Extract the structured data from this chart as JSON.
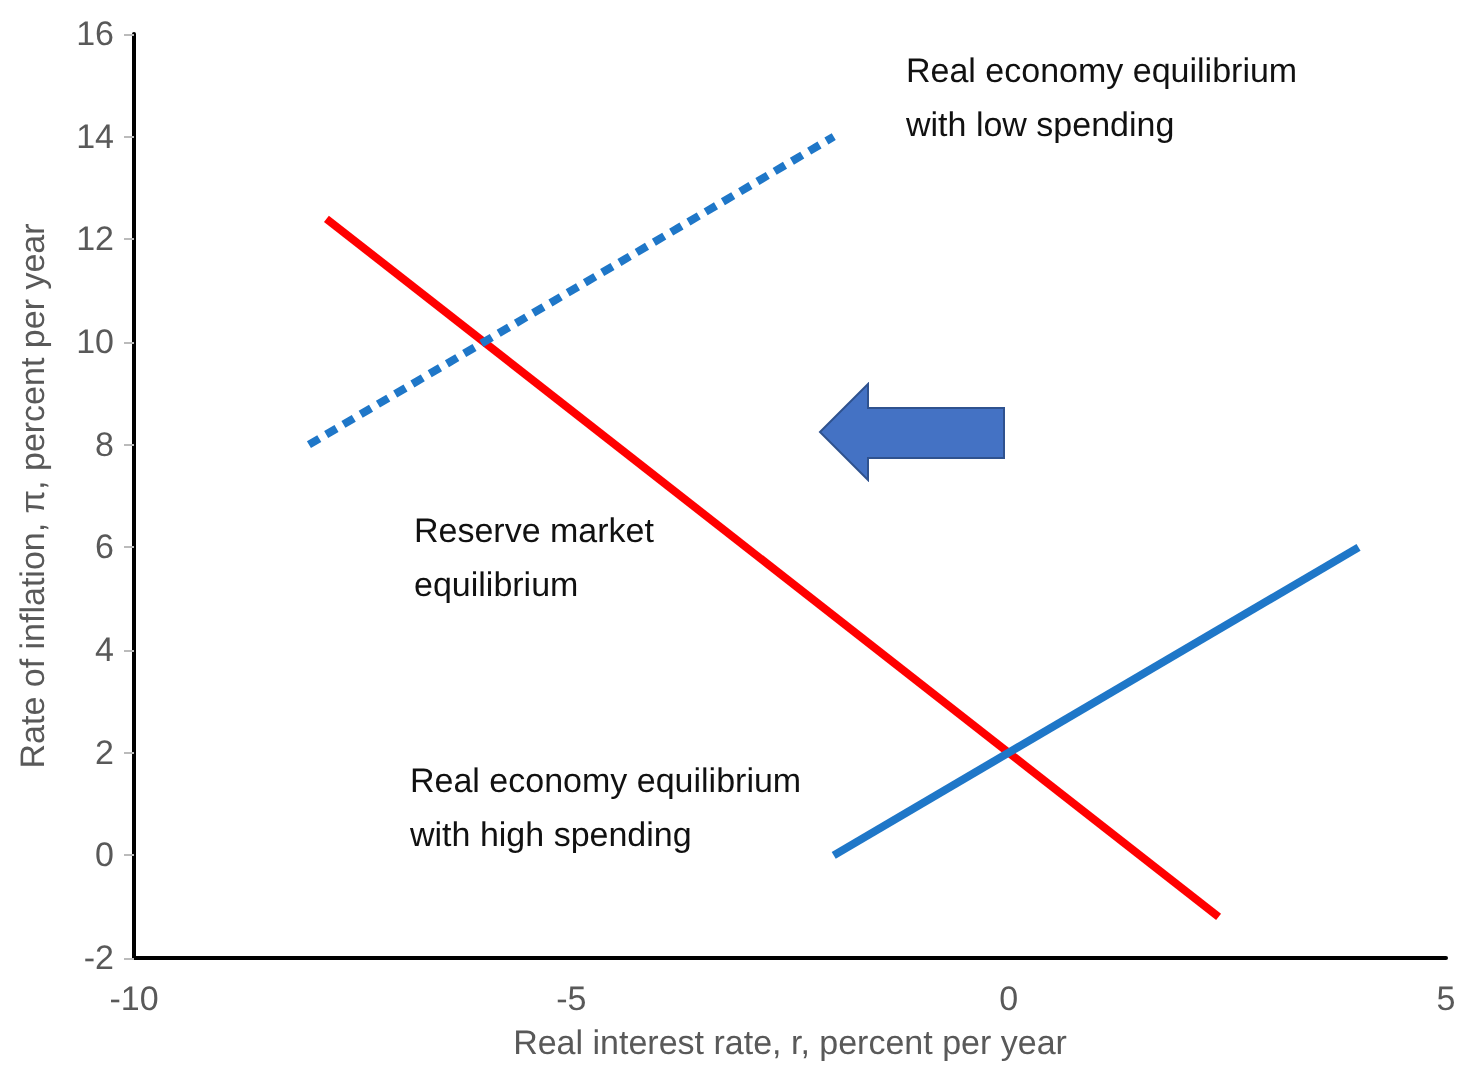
{
  "chart_data": {
    "type": "line",
    "xlabel": "Real interest rate, r, percent per year",
    "ylabel": "Rate of inflation, π, percent per year",
    "xlim": [
      -10,
      5
    ],
    "xticks": [
      -10,
      -5,
      0,
      5
    ],
    "ylim": [
      -2,
      16
    ],
    "yticks": [
      -2,
      0,
      2,
      4,
      6,
      8,
      10,
      12,
      14,
      16
    ],
    "series": [
      {
        "x": [
          -7.8,
          2.4
        ],
        "values": [
          12.4,
          -1.2
        ],
        "color": "#ff0000",
        "line_style": "solid"
      },
      {
        "x": [
          -8,
          -2
        ],
        "values": [
          8,
          14
        ],
        "color": "#1f77c8",
        "line_style": "dashed"
      },
      {
        "x": [
          -2,
          4
        ],
        "values": [
          0,
          6
        ],
        "color": "#1f77c8",
        "line_style": "solid"
      }
    ],
    "annotations": [
      "Real economy equilibrium with low spending",
      "Reserve market equilibrium",
      "Real economy equilibrium with high spending"
    ],
    "marker": "none",
    "grid": false
  }
}
